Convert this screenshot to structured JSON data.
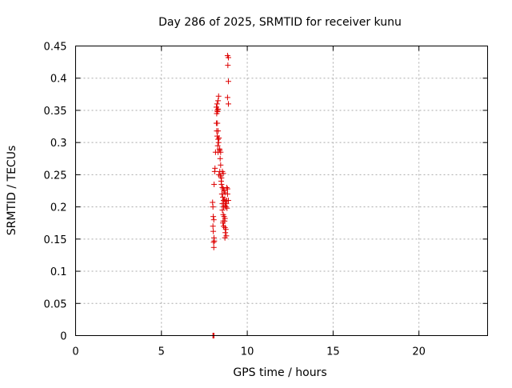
{
  "chart_data": {
    "type": "scatter",
    "title": "Day 286 of 2025, SRMTID for receiver kunu",
    "xlabel": "GPS time / hours",
    "ylabel": "SRMTID / TECUs",
    "xlim": [
      0,
      24
    ],
    "ylim": [
      0,
      0.45
    ],
    "xticks": [
      0,
      5,
      10,
      15,
      20
    ],
    "xtick_labels": [
      "0",
      "5",
      "10",
      "15",
      "20"
    ],
    "yticks": [
      0,
      0.05,
      0.1,
      0.15,
      0.2,
      0.25,
      0.3,
      0.35,
      0.4,
      0.45
    ],
    "ytick_labels": [
      "0",
      "0.05",
      "0.1",
      "0.15",
      "0.2",
      "0.25",
      "0.3",
      "0.35",
      "0.4",
      "0.45"
    ],
    "grid": true,
    "marker": "+",
    "colors": {
      "series": "#dd0000",
      "grid": "#aaaaaa",
      "frame": "#000000"
    },
    "series": [
      {
        "points": [
          [
            8.0,
            0.0
          ],
          [
            8.03,
            0.0
          ],
          [
            8.06,
            0.0
          ],
          [
            7.98,
            0.207
          ],
          [
            8.0,
            0.2
          ],
          [
            8.02,
            0.185
          ],
          [
            8.05,
            0.18
          ],
          [
            8.0,
            0.17
          ],
          [
            8.02,
            0.162
          ],
          [
            8.06,
            0.152
          ],
          [
            8.08,
            0.147
          ],
          [
            8.04,
            0.145
          ],
          [
            8.05,
            0.137
          ],
          [
            8.07,
            0.235
          ],
          [
            8.1,
            0.255
          ],
          [
            8.12,
            0.26
          ],
          [
            8.15,
            0.285
          ],
          [
            8.2,
            0.355
          ],
          [
            8.22,
            0.345
          ],
          [
            8.25,
            0.35
          ],
          [
            8.27,
            0.348
          ],
          [
            8.3,
            0.352
          ],
          [
            8.24,
            0.36
          ],
          [
            8.3,
            0.365
          ],
          [
            8.33,
            0.372
          ],
          [
            8.22,
            0.318
          ],
          [
            8.3,
            0.318
          ],
          [
            8.2,
            0.33
          ],
          [
            8.26,
            0.33
          ],
          [
            8.25,
            0.31
          ],
          [
            8.3,
            0.305
          ],
          [
            8.33,
            0.3
          ],
          [
            8.35,
            0.307
          ],
          [
            8.28,
            0.295
          ],
          [
            8.38,
            0.29
          ],
          [
            8.4,
            0.288
          ],
          [
            8.3,
            0.285
          ],
          [
            8.45,
            0.285
          ],
          [
            8.42,
            0.275
          ],
          [
            8.45,
            0.265
          ],
          [
            8.4,
            0.255
          ],
          [
            8.35,
            0.25
          ],
          [
            8.44,
            0.248
          ],
          [
            8.5,
            0.245
          ],
          [
            8.55,
            0.255
          ],
          [
            8.6,
            0.252
          ],
          [
            8.48,
            0.24
          ],
          [
            8.5,
            0.235
          ],
          [
            8.55,
            0.23
          ],
          [
            8.6,
            0.228
          ],
          [
            8.65,
            0.225
          ],
          [
            8.7,
            0.222
          ],
          [
            8.52,
            0.22
          ],
          [
            8.58,
            0.215
          ],
          [
            8.62,
            0.21
          ],
          [
            8.68,
            0.212
          ],
          [
            8.72,
            0.208
          ],
          [
            8.55,
            0.205
          ],
          [
            8.62,
            0.2
          ],
          [
            8.7,
            0.202
          ],
          [
            8.75,
            0.2
          ],
          [
            8.8,
            0.21
          ],
          [
            8.85,
            0.22
          ],
          [
            8.9,
            0.21
          ],
          [
            8.78,
            0.205
          ],
          [
            8.82,
            0.198
          ],
          [
            8.55,
            0.195
          ],
          [
            8.6,
            0.188
          ],
          [
            8.65,
            0.185
          ],
          [
            8.7,
            0.182
          ],
          [
            8.68,
            0.178
          ],
          [
            8.58,
            0.175
          ],
          [
            8.62,
            0.17
          ],
          [
            8.7,
            0.168
          ],
          [
            8.75,
            0.165
          ],
          [
            8.72,
            0.16
          ],
          [
            8.78,
            0.155
          ],
          [
            8.7,
            0.152
          ],
          [
            8.6,
            0.178
          ],
          [
            8.8,
            0.23
          ],
          [
            8.85,
            0.228
          ],
          [
            8.85,
            0.435
          ],
          [
            8.9,
            0.432
          ],
          [
            8.87,
            0.42
          ],
          [
            8.9,
            0.395
          ],
          [
            8.85,
            0.37
          ],
          [
            8.9,
            0.36
          ]
        ]
      }
    ]
  }
}
